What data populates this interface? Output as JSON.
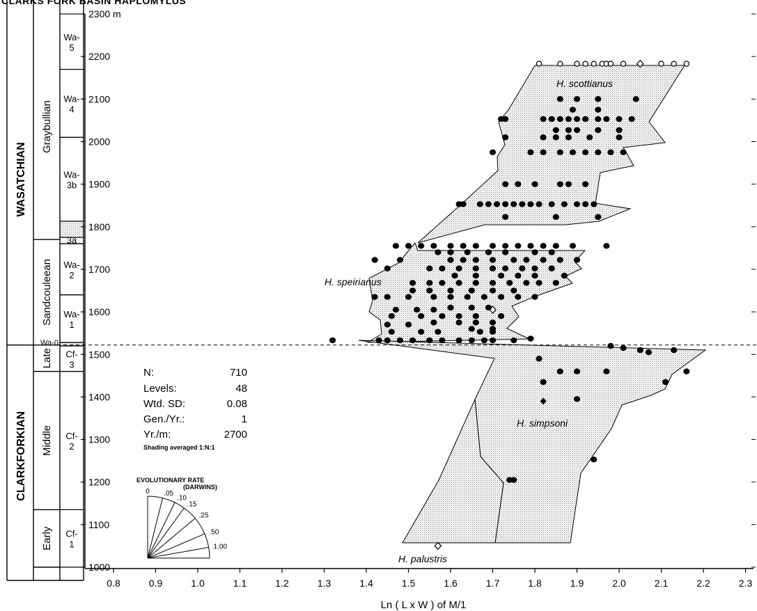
{
  "page_title": "CLARKS FORK BASIN HAPLOMYLUS",
  "chart_data": {
    "type": "scatter",
    "xlabel": "Ln ( L x W ) of M/1",
    "y_unit": "m",
    "xlim": [
      0.8,
      2.3
    ],
    "ylim": [
      1000,
      2300
    ],
    "x_ticks": [
      "0.8",
      "0.9",
      "1.0",
      "1.1",
      "1.2",
      "1.3",
      "1.4",
      "1.5",
      "1.6",
      "1.7",
      "1.8",
      "1.9",
      "2.0",
      "2.1",
      "2.2",
      "2.3"
    ],
    "y_ticks": [
      "1000",
      "1100",
      "1200",
      "1300",
      "1400",
      "1500",
      "1600",
      "1700",
      "1800",
      "1900",
      "2000",
      "2100",
      "2200",
      "2300 m"
    ],
    "boundary_level": 1522,
    "stages": [
      {
        "name": "WASATCHIAN",
        "from": 1522,
        "to": 2300
      },
      {
        "name": "CLARKFORKIAN",
        "from": 1000,
        "to": 1522
      }
    ],
    "substages": [
      {
        "name": "Graybullian",
        "from": 1770,
        "to": 2300
      },
      {
        "name": "Sandcouleean",
        "from": 1522,
        "to": 1770
      },
      {
        "name": "Late",
        "from": 1460,
        "to": 1522
      },
      {
        "name": "Middle",
        "from": 1135,
        "to": 1460
      },
      {
        "name": "Early",
        "from": 1000,
        "to": 1135
      }
    ],
    "zones": [
      {
        "label": "Wa-5",
        "from": 2170,
        "to": 2300
      },
      {
        "label": "Wa-4",
        "from": 2010,
        "to": 2170
      },
      {
        "label": "Wa-3b",
        "from": 1813,
        "to": 2010
      },
      {
        "label": "3a",
        "from": 1760,
        "to": 1775
      },
      {
        "label": "Wa-2",
        "from": 1640,
        "to": 1760
      },
      {
        "label": "Wa-1",
        "from": 1528,
        "to": 1640
      },
      {
        "label": "Wa-0",
        "from": 1520,
        "to": 1528
      },
      {
        "label": "Cf-3",
        "from": 1460,
        "to": 1520
      },
      {
        "label": "Cf-2",
        "from": 1135,
        "to": 1460
      },
      {
        "label": "Cf-1",
        "from": 1000,
        "to": 1135
      }
    ],
    "species_labels": [
      "H. scottianus",
      "H. speirianus",
      "H. simpsoni",
      "H. palustris"
    ],
    "stats": {
      "n_label": "N:",
      "n_value": "710",
      "levels_label": "Levels:",
      "levels_value": "48",
      "sd_label": "Wtd. SD:",
      "sd_value": "0.08",
      "gen_label": "Gen./Yr.:",
      "gen_value": "1",
      "yr_label": "Yr./m:",
      "yr_value": "2700",
      "note": "Shading averaged 1:N:1"
    },
    "rate_legend": {
      "title1": "EVOLUTIONARY RATE",
      "title2": "(DARWINS)",
      "rays": [
        {
          "label": "0",
          "angle": 90
        },
        {
          "label": ".05",
          "angle": 76
        },
        {
          "label": ".10",
          "angle": 64
        },
        {
          "label": ".15",
          "angle": 54
        },
        {
          "label": ".25",
          "angle": 40
        },
        {
          "label": ".50",
          "angle": 23
        },
        {
          "label": "1.00",
          "angle": 10
        }
      ]
    },
    "series": [
      {
        "marker": "open-circle",
        "points": [
          [
            1.81,
            2183
          ],
          [
            1.86,
            2183
          ],
          [
            1.9,
            2183
          ],
          [
            1.92,
            2183
          ],
          [
            1.94,
            2183
          ],
          [
            1.96,
            2183
          ],
          [
            1.97,
            2183
          ],
          [
            1.98,
            2183
          ],
          [
            2.01,
            2183
          ],
          [
            2.1,
            2183
          ],
          [
            2.13,
            2183
          ],
          [
            2.16,
            2183
          ]
        ]
      },
      {
        "marker": "open-diamond",
        "points": [
          [
            2.05,
            2183
          ],
          [
            1.7,
            1605
          ],
          [
            1.57,
            1050
          ]
        ]
      },
      {
        "marker": "solid-diamond",
        "points": [
          [
            1.82,
            1390
          ]
        ]
      },
      {
        "marker": "filled-circle",
        "points": [
          [
            1.86,
            2100
          ],
          [
            1.9,
            2100
          ],
          [
            1.95,
            2100
          ],
          [
            2.04,
            2100
          ],
          [
            1.89,
            2075
          ],
          [
            1.95,
            2075
          ],
          [
            1.72,
            2053
          ],
          [
            1.73,
            2053
          ],
          [
            1.82,
            2053
          ],
          [
            1.84,
            2053
          ],
          [
            1.86,
            2053
          ],
          [
            1.88,
            2053
          ],
          [
            1.9,
            2053
          ],
          [
            1.92,
            2053
          ],
          [
            1.95,
            2053
          ],
          [
            1.97,
            2053
          ],
          [
            2.0,
            2053
          ],
          [
            2.03,
            2053
          ],
          [
            1.85,
            2027
          ],
          [
            1.88,
            2027
          ],
          [
            1.9,
            2027
          ],
          [
            1.95,
            2027
          ],
          [
            2.0,
            2027
          ],
          [
            1.73,
            2010
          ],
          [
            1.82,
            2010
          ],
          [
            1.85,
            2010
          ],
          [
            1.88,
            2010
          ],
          [
            1.93,
            2010
          ],
          [
            2.0,
            2010
          ],
          [
            1.7,
            1975
          ],
          [
            1.79,
            1975
          ],
          [
            1.82,
            1975
          ],
          [
            1.86,
            1975
          ],
          [
            1.89,
            1975
          ],
          [
            1.92,
            1975
          ],
          [
            1.95,
            1975
          ],
          [
            1.98,
            1975
          ],
          [
            2.01,
            1975
          ],
          [
            1.73,
            1900
          ],
          [
            1.76,
            1900
          ],
          [
            1.8,
            1900
          ],
          [
            1.86,
            1900
          ],
          [
            1.88,
            1900
          ],
          [
            1.92,
            1900
          ],
          [
            1.62,
            1853
          ],
          [
            1.63,
            1853
          ],
          [
            1.67,
            1853
          ],
          [
            1.69,
            1853
          ],
          [
            1.71,
            1853
          ],
          [
            1.73,
            1853
          ],
          [
            1.75,
            1853
          ],
          [
            1.77,
            1853
          ],
          [
            1.79,
            1853
          ],
          [
            1.81,
            1853
          ],
          [
            1.84,
            1853
          ],
          [
            1.87,
            1853
          ],
          [
            1.9,
            1853
          ],
          [
            1.92,
            1853
          ],
          [
            1.94,
            1853
          ],
          [
            1.73,
            1823
          ],
          [
            1.85,
            1823
          ],
          [
            1.95,
            1823
          ],
          [
            1.47,
            1755
          ],
          [
            1.5,
            1755
          ],
          [
            1.53,
            1755
          ],
          [
            1.56,
            1755
          ],
          [
            1.6,
            1755
          ],
          [
            1.63,
            1755
          ],
          [
            1.66,
            1755
          ],
          [
            1.7,
            1755
          ],
          [
            1.73,
            1755
          ],
          [
            1.76,
            1755
          ],
          [
            1.79,
            1755
          ],
          [
            1.82,
            1755
          ],
          [
            1.85,
            1755
          ],
          [
            1.89,
            1755
          ],
          [
            1.97,
            1755
          ],
          [
            1.57,
            1740
          ],
          [
            1.6,
            1740
          ],
          [
            1.64,
            1740
          ],
          [
            1.69,
            1740
          ],
          [
            1.73,
            1740
          ],
          [
            1.8,
            1740
          ],
          [
            1.84,
            1740
          ],
          [
            1.42,
            1722
          ],
          [
            1.48,
            1722
          ],
          [
            1.6,
            1722
          ],
          [
            1.63,
            1722
          ],
          [
            1.66,
            1722
          ],
          [
            1.7,
            1722
          ],
          [
            1.75,
            1722
          ],
          [
            1.78,
            1722
          ],
          [
            1.82,
            1722
          ],
          [
            1.86,
            1722
          ],
          [
            1.9,
            1722
          ],
          [
            1.45,
            1702
          ],
          [
            1.55,
            1702
          ],
          [
            1.58,
            1702
          ],
          [
            1.62,
            1702
          ],
          [
            1.66,
            1702
          ],
          [
            1.7,
            1702
          ],
          [
            1.73,
            1702
          ],
          [
            1.77,
            1702
          ],
          [
            1.8,
            1702
          ],
          [
            1.84,
            1702
          ],
          [
            1.61,
            1685
          ],
          [
            1.66,
            1685
          ],
          [
            1.72,
            1685
          ],
          [
            1.76,
            1685
          ],
          [
            1.8,
            1685
          ],
          [
            1.87,
            1685
          ],
          [
            1.51,
            1668
          ],
          [
            1.55,
            1668
          ],
          [
            1.58,
            1668
          ],
          [
            1.62,
            1668
          ],
          [
            1.66,
            1668
          ],
          [
            1.7,
            1668
          ],
          [
            1.74,
            1668
          ],
          [
            1.78,
            1668
          ],
          [
            1.81,
            1668
          ],
          [
            1.85,
            1668
          ],
          [
            1.51,
            1650
          ],
          [
            1.55,
            1650
          ],
          [
            1.6,
            1650
          ],
          [
            1.65,
            1650
          ],
          [
            1.7,
            1650
          ],
          [
            1.75,
            1650
          ],
          [
            1.42,
            1635
          ],
          [
            1.45,
            1635
          ],
          [
            1.5,
            1635
          ],
          [
            1.56,
            1635
          ],
          [
            1.6,
            1635
          ],
          [
            1.64,
            1635
          ],
          [
            1.68,
            1635
          ],
          [
            1.72,
            1635
          ],
          [
            1.76,
            1635
          ],
          [
            1.8,
            1635
          ],
          [
            1.6,
            1610
          ],
          [
            1.65,
            1610
          ],
          [
            1.69,
            1610
          ],
          [
            1.47,
            1605
          ],
          [
            1.52,
            1605
          ],
          [
            1.56,
            1605
          ],
          [
            1.46,
            1590
          ],
          [
            1.53,
            1590
          ],
          [
            1.58,
            1590
          ],
          [
            1.62,
            1590
          ],
          [
            1.66,
            1590
          ],
          [
            1.72,
            1590
          ],
          [
            1.56,
            1575
          ],
          [
            1.62,
            1575
          ],
          [
            1.66,
            1575
          ],
          [
            1.7,
            1575
          ],
          [
            1.45,
            1570
          ],
          [
            1.5,
            1570
          ],
          [
            1.65,
            1560
          ],
          [
            1.7,
            1560
          ],
          [
            1.46,
            1553
          ],
          [
            1.53,
            1553
          ],
          [
            1.57,
            1553
          ],
          [
            1.67,
            1553
          ],
          [
            1.7,
            1553
          ],
          [
            1.32,
            1533
          ],
          [
            1.43,
            1533
          ],
          [
            1.45,
            1533
          ],
          [
            1.48,
            1533
          ],
          [
            1.51,
            1533
          ],
          [
            1.55,
            1533
          ],
          [
            1.58,
            1533
          ],
          [
            1.62,
            1533
          ],
          [
            1.65,
            1533
          ],
          [
            1.68,
            1533
          ],
          [
            1.7,
            1533
          ],
          [
            1.75,
            1533
          ],
          [
            1.79,
            1537
          ],
          [
            1.98,
            1520
          ],
          [
            2.01,
            1515
          ],
          [
            2.05,
            1510
          ],
          [
            2.07,
            1505
          ],
          [
            2.13,
            1510
          ],
          [
            1.81,
            1490
          ],
          [
            1.86,
            1460
          ],
          [
            1.9,
            1460
          ],
          [
            1.97,
            1460
          ],
          [
            2.16,
            1460
          ],
          [
            1.82,
            1435
          ],
          [
            2.11,
            1435
          ],
          [
            1.9,
            1395
          ],
          [
            1.94,
            1253
          ],
          [
            1.74,
            1205
          ],
          [
            1.75,
            1205
          ]
        ]
      }
    ]
  }
}
